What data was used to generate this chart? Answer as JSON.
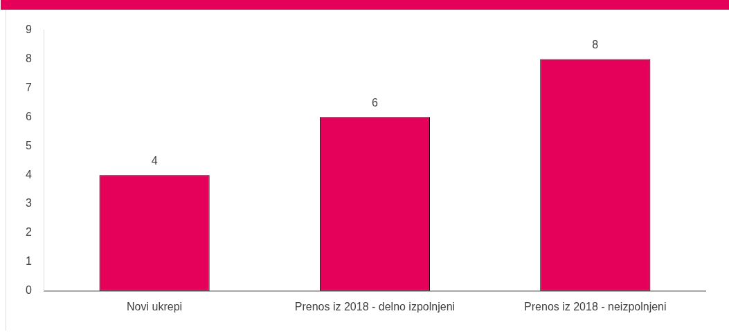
{
  "chart_data": {
    "type": "bar",
    "categories": [
      "Novi ukrepi",
      "Prenos iz 2018 - delno izpolnjeni",
      "Prenos iz 2018 - neizpolnjeni"
    ],
    "values": [
      4,
      6,
      8
    ],
    "color": "#e5005a",
    "ylim": [
      0,
      9
    ],
    "yticks": [
      0,
      1,
      2,
      3,
      4,
      5,
      6,
      7,
      8,
      9
    ],
    "grid": false,
    "legend": false,
    "data_labels": true
  }
}
